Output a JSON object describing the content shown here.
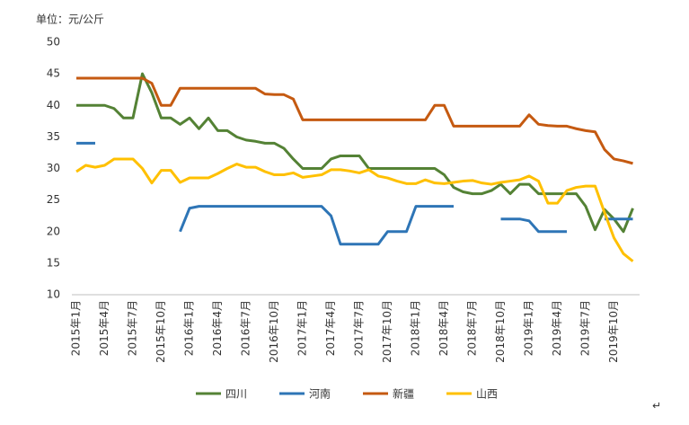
{
  "chart_data": {
    "type": "line",
    "title": "单位：元/公斤",
    "categories": [
      "2015年1月",
      null,
      null,
      "2015年4月",
      null,
      null,
      "2015年7月",
      null,
      null,
      "2015年10月",
      null,
      null,
      "2016年1月",
      null,
      null,
      "2016年4月",
      null,
      null,
      "2016年7月",
      null,
      null,
      "2016年10月",
      null,
      null,
      "2017年1月",
      null,
      null,
      "2017年4月",
      null,
      null,
      "2017年7月",
      null,
      null,
      "2017年10月",
      null,
      null,
      "2018年1月",
      null,
      null,
      "2018年4月",
      null,
      null,
      "2018年7月",
      null,
      null,
      "2018年10月",
      null,
      null,
      "2019年1月",
      null,
      null,
      "2019年4月",
      null,
      null,
      "2019年7月",
      null,
      null,
      "2019年10月",
      null,
      null
    ],
    "series": [
      {
        "name": "四川",
        "color": "#548235",
        "values": [
          40,
          40,
          40,
          40,
          39.5,
          38,
          38,
          45,
          42,
          38,
          38,
          37,
          38,
          36.3,
          38,
          36,
          36,
          35,
          34.5,
          34.3,
          34,
          34,
          33.2,
          31.5,
          30,
          30,
          30,
          31.5,
          32,
          32,
          32,
          30,
          30,
          30,
          30,
          30,
          30,
          30,
          30,
          29,
          27,
          26.3,
          26,
          26,
          26.5,
          27.5,
          26,
          27.5,
          27.5,
          26,
          26,
          26,
          26,
          26,
          24,
          20.3,
          23.5,
          22,
          20,
          23.7
        ]
      },
      {
        "name": "河南",
        "color": "#2e75b6",
        "values": [
          34,
          34,
          34,
          null,
          null,
          null,
          null,
          null,
          null,
          null,
          null,
          20,
          23.7,
          24,
          24,
          24,
          24,
          24,
          24,
          24,
          24,
          24,
          24,
          24,
          24,
          24,
          24,
          22.5,
          18,
          18,
          18,
          18,
          18,
          20,
          20,
          20,
          24,
          24,
          24,
          24,
          24,
          null,
          null,
          null,
          null,
          22,
          22,
          22,
          21.7,
          20,
          20,
          20,
          20,
          null,
          null,
          null,
          22,
          22,
          22,
          22
        ]
      },
      {
        "name": "新疆",
        "color": "#c55a11",
        "values": [
          44.3,
          44.3,
          44.3,
          44.3,
          44.3,
          44.3,
          44.3,
          44.3,
          43.5,
          40,
          40,
          42.7,
          42.7,
          42.7,
          42.7,
          42.7,
          42.7,
          42.7,
          42.7,
          42.7,
          41.8,
          41.7,
          41.7,
          41,
          37.7,
          37.7,
          37.7,
          37.7,
          37.7,
          37.7,
          37.7,
          37.7,
          37.7,
          37.7,
          37.7,
          37.7,
          37.7,
          37.7,
          40,
          40,
          36.7,
          36.7,
          36.7,
          36.7,
          36.7,
          36.7,
          36.7,
          36.7,
          38.5,
          37,
          36.8,
          36.7,
          36.7,
          36.3,
          36,
          35.8,
          33,
          31.5,
          31.2,
          30.8
        ]
      },
      {
        "name": "山西",
        "color": "#ffc000",
        "values": [
          29.5,
          30.5,
          30.2,
          30.5,
          31.5,
          31.5,
          31.5,
          30,
          27.7,
          29.7,
          29.7,
          27.8,
          28.5,
          28.5,
          28.5,
          29.2,
          30,
          30.7,
          30.2,
          30.2,
          29.5,
          29,
          29,
          29.3,
          28.6,
          28.8,
          29,
          29.8,
          29.8,
          29.6,
          29.3,
          29.8,
          28.8,
          28.5,
          28,
          27.6,
          27.6,
          28.2,
          27.7,
          27.6,
          27.8,
          28,
          28.1,
          27.7,
          27.5,
          27.8,
          28,
          28.2,
          28.8,
          28,
          24.5,
          24.5,
          26.5,
          27,
          27.2,
          27.2,
          23,
          19,
          16.5,
          15.3
        ]
      }
    ],
    "ylim": [
      10,
      50
    ],
    "yticks": [
      10,
      15,
      20,
      25,
      30,
      35,
      40,
      45,
      50
    ],
    "grid": false,
    "legend": "bottom",
    "note": "↵"
  }
}
